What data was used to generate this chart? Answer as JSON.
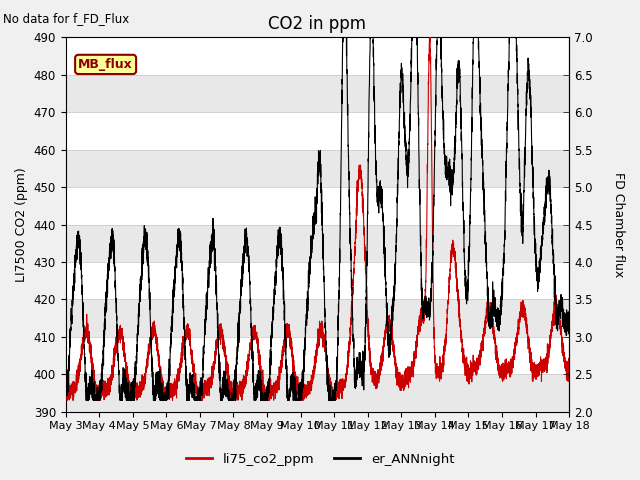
{
  "title": "CO2 in ppm",
  "ylabel_left": "LI7500 CO2 (ppm)",
  "ylabel_right": "FD Chamber flux",
  "ylim_left": [
    390,
    490
  ],
  "ylim_right": [
    2.0,
    7.0
  ],
  "plot_bg_color": "#e0e0e0",
  "fig_bg_color": "#f0f0f0",
  "band_color_dark": "#d8d8d8",
  "band_color_light": "#e8e8e8",
  "no_data_text": "No data for f_FD_Flux",
  "mb_flux_label": "MB_flux",
  "legend_labels": [
    "li75_co2_ppm",
    "er_ANNnight"
  ],
  "red_line_color": "#cc0000",
  "black_line_color": "#000000",
  "grid_color": "#ffffff",
  "title_fontsize": 12,
  "axis_label_fontsize": 9,
  "tick_fontsize": 8.5,
  "x_tick_labels": [
    "May 3",
    "May 4",
    "May 5",
    "May 6",
    "May 7",
    "May 8",
    "May 9",
    "May 10",
    "May 11",
    "May 12",
    "May 13",
    "May 14",
    "May 15",
    "May 16",
    "May 17",
    "May 18"
  ],
  "x_tick_positions": [
    3,
    4,
    5,
    6,
    7,
    8,
    9,
    10,
    11,
    12,
    13,
    14,
    15,
    16,
    17,
    18
  ],
  "yticks": [
    390,
    400,
    410,
    420,
    430,
    440,
    450,
    460,
    470,
    480,
    490
  ],
  "yticks_right": [
    2.0,
    2.5,
    3.0,
    3.5,
    4.0,
    4.5,
    5.0,
    5.5,
    6.0,
    6.5,
    7.0
  ]
}
